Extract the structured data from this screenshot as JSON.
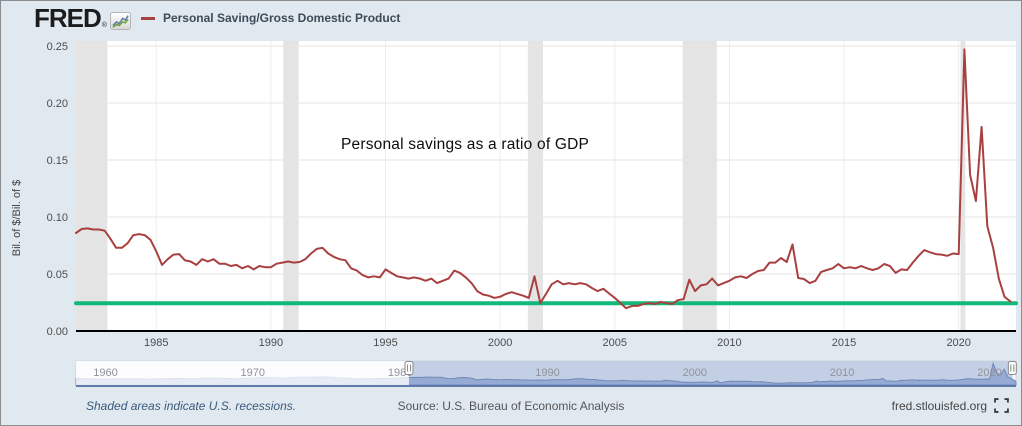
{
  "header": {
    "logo_text": "FRED",
    "logo_registered_mark": "®",
    "logo_icon": "line-chart-icon",
    "legend": {
      "marker_color": "#a94040",
      "label": "Personal Saving/Gross Domestic Product"
    }
  },
  "chart_data": {
    "type": "line",
    "annotation": "Personal savings as a ratio of GDP",
    "ylabel": "Bil. of $/Bil. of $",
    "ylim": [
      0,
      0.25
    ],
    "xlim": [
      1981.5,
      2022.5
    ],
    "y_ticks": [
      0.0,
      0.05,
      0.1,
      0.15,
      0.2,
      0.25
    ],
    "x_ticks": [
      1985,
      1990,
      1995,
      2000,
      2005,
      2010,
      2015,
      2020
    ],
    "grid": "horizontal-light",
    "recession_bands": [
      [
        1981.5,
        1982.87
      ],
      [
        1990.54,
        1991.21
      ],
      [
        2001.21,
        2001.87
      ],
      [
        2007.96,
        2009.45
      ],
      [
        2020.08,
        2020.29
      ]
    ],
    "series": [
      {
        "name": "Personal Saving/Gross Domestic Product",
        "color": "#a94040",
        "width": 2,
        "points": [
          [
            1981.5,
            0.086
          ],
          [
            1981.75,
            0.0895
          ],
          [
            1982,
            0.09
          ],
          [
            1982.25,
            0.089
          ],
          [
            1982.5,
            0.089
          ],
          [
            1982.75,
            0.088
          ],
          [
            1983,
            0.081
          ],
          [
            1983.25,
            0.073
          ],
          [
            1983.5,
            0.073
          ],
          [
            1983.75,
            0.077
          ],
          [
            1984,
            0.084
          ],
          [
            1984.25,
            0.085
          ],
          [
            1984.5,
            0.084
          ],
          [
            1984.75,
            0.08
          ],
          [
            1985,
            0.07
          ],
          [
            1985.25,
            0.058
          ],
          [
            1985.5,
            0.063
          ],
          [
            1985.75,
            0.067
          ],
          [
            1986,
            0.0675
          ],
          [
            1986.25,
            0.062
          ],
          [
            1986.5,
            0.061
          ],
          [
            1986.75,
            0.058
          ],
          [
            1987,
            0.063
          ],
          [
            1987.25,
            0.061
          ],
          [
            1987.5,
            0.063
          ],
          [
            1987.75,
            0.059
          ],
          [
            1988,
            0.059
          ],
          [
            1988.25,
            0.057
          ],
          [
            1988.5,
            0.058
          ],
          [
            1988.75,
            0.055
          ],
          [
            1989,
            0.057
          ],
          [
            1989.25,
            0.054
          ],
          [
            1989.5,
            0.057
          ],
          [
            1989.75,
            0.056
          ],
          [
            1990,
            0.056
          ],
          [
            1990.25,
            0.059
          ],
          [
            1990.5,
            0.06
          ],
          [
            1990.75,
            0.061
          ],
          [
            1991,
            0.06
          ],
          [
            1991.25,
            0.0605
          ],
          [
            1991.5,
            0.063
          ],
          [
            1991.75,
            0.068
          ],
          [
            1992,
            0.072
          ],
          [
            1992.25,
            0.073
          ],
          [
            1992.5,
            0.068
          ],
          [
            1992.75,
            0.065
          ],
          [
            1993,
            0.063
          ],
          [
            1993.25,
            0.062
          ],
          [
            1993.5,
            0.055
          ],
          [
            1993.75,
            0.053
          ],
          [
            1994,
            0.049
          ],
          [
            1994.25,
            0.047
          ],
          [
            1994.5,
            0.048
          ],
          [
            1994.75,
            0.047
          ],
          [
            1995,
            0.054
          ],
          [
            1995.25,
            0.051
          ],
          [
            1995.5,
            0.048
          ],
          [
            1995.75,
            0.047
          ],
          [
            1996,
            0.046
          ],
          [
            1996.25,
            0.047
          ],
          [
            1996.5,
            0.046
          ],
          [
            1996.75,
            0.044
          ],
          [
            1997,
            0.046
          ],
          [
            1997.25,
            0.042
          ],
          [
            1997.5,
            0.044
          ],
          [
            1997.75,
            0.046
          ],
          [
            1998,
            0.053
          ],
          [
            1998.25,
            0.051
          ],
          [
            1998.5,
            0.047
          ],
          [
            1998.75,
            0.042
          ],
          [
            1999,
            0.035
          ],
          [
            1999.25,
            0.032
          ],
          [
            1999.5,
            0.031
          ],
          [
            1999.75,
            0.029
          ],
          [
            2000,
            0.03
          ],
          [
            2000.25,
            0.0325
          ],
          [
            2000.5,
            0.034
          ],
          [
            2000.75,
            0.0325
          ],
          [
            2001,
            0.031
          ],
          [
            2001.25,
            0.029
          ],
          [
            2001.5,
            0.048
          ],
          [
            2001.75,
            0.0245
          ],
          [
            2002,
            0.0325
          ],
          [
            2002.25,
            0.041
          ],
          [
            2002.5,
            0.044
          ],
          [
            2002.75,
            0.041
          ],
          [
            2003,
            0.042
          ],
          [
            2003.25,
            0.041
          ],
          [
            2003.5,
            0.042
          ],
          [
            2003.75,
            0.041
          ],
          [
            2004,
            0.0377
          ],
          [
            2004.25,
            0.035
          ],
          [
            2004.5,
            0.037
          ],
          [
            2004.75,
            0.033
          ],
          [
            2005,
            0.029
          ],
          [
            2005.25,
            0.0245
          ],
          [
            2005.5,
            0.02
          ],
          [
            2005.75,
            0.022
          ],
          [
            2006,
            0.022
          ],
          [
            2006.25,
            0.0237
          ],
          [
            2006.5,
            0.0246
          ],
          [
            2006.75,
            0.0237
          ],
          [
            2007,
            0.0254
          ],
          [
            2007.25,
            0.0246
          ],
          [
            2007.5,
            0.0237
          ],
          [
            2007.75,
            0.027
          ],
          [
            2008,
            0.028
          ],
          [
            2008.25,
            0.045
          ],
          [
            2008.5,
            0.035
          ],
          [
            2008.75,
            0.04
          ],
          [
            2009,
            0.041
          ],
          [
            2009.25,
            0.046
          ],
          [
            2009.5,
            0.04
          ],
          [
            2009.75,
            0.042
          ],
          [
            2010,
            0.044
          ],
          [
            2010.25,
            0.047
          ],
          [
            2010.5,
            0.048
          ],
          [
            2010.75,
            0.0465
          ],
          [
            2011,
            0.05
          ],
          [
            2011.25,
            0.0526
          ],
          [
            2011.5,
            0.0535
          ],
          [
            2011.75,
            0.06
          ],
          [
            2012,
            0.06
          ],
          [
            2012.25,
            0.064
          ],
          [
            2012.5,
            0.0605
          ],
          [
            2012.75,
            0.076
          ],
          [
            2013,
            0.0465
          ],
          [
            2013.25,
            0.0456
          ],
          [
            2013.5,
            0.042
          ],
          [
            2013.75,
            0.044
          ],
          [
            2014,
            0.0518
          ],
          [
            2014.25,
            0.0535
          ],
          [
            2014.5,
            0.055
          ],
          [
            2014.75,
            0.0588
          ],
          [
            2015,
            0.055
          ],
          [
            2015.25,
            0.056
          ],
          [
            2015.5,
            0.055
          ],
          [
            2015.75,
            0.057
          ],
          [
            2016,
            0.055
          ],
          [
            2016.25,
            0.0535
          ],
          [
            2016.5,
            0.055
          ],
          [
            2016.75,
            0.0588
          ],
          [
            2017,
            0.057
          ],
          [
            2017.25,
            0.051
          ],
          [
            2017.5,
            0.054
          ],
          [
            2017.75,
            0.0535
          ],
          [
            2018,
            0.06
          ],
          [
            2018.25,
            0.066
          ],
          [
            2018.5,
            0.071
          ],
          [
            2018.75,
            0.069
          ],
          [
            2019,
            0.0675
          ],
          [
            2019.25,
            0.067
          ],
          [
            2019.5,
            0.066
          ],
          [
            2019.75,
            0.068
          ],
          [
            2020,
            0.0675
          ],
          [
            2020.25,
            0.247
          ],
          [
            2020.5,
            0.137
          ],
          [
            2020.75,
            0.114
          ],
          [
            2021,
            0.179
          ],
          [
            2021.25,
            0.092
          ],
          [
            2021.5,
            0.073
          ],
          [
            2021.75,
            0.046
          ],
          [
            2022,
            0.03
          ],
          [
            2022.25,
            0.026
          ]
        ]
      },
      {
        "name": "horizontal reference line",
        "color": "#12b87a",
        "width": 4,
        "points": [
          [
            1981.5,
            0.0243
          ],
          [
            2022.5,
            0.0243
          ]
        ]
      }
    ]
  },
  "slider": {
    "decade_labels": [
      "1960",
      "1970",
      "1980",
      "1990",
      "2000",
      "2010",
      "2020"
    ],
    "decade_years": [
      1960,
      1970,
      1980,
      1990,
      2000,
      2010,
      2020
    ],
    "domain": [
      1958,
      2021.8
    ],
    "selected_range": [
      1980.6,
      2021.55
    ],
    "pre_1981_points": [
      [
        1958,
        0.075
      ],
      [
        1959,
        0.07
      ],
      [
        1960,
        0.066
      ],
      [
        1961,
        0.072
      ],
      [
        1962,
        0.071
      ],
      [
        1963,
        0.068
      ],
      [
        1964,
        0.073
      ],
      [
        1965,
        0.074
      ],
      [
        1966,
        0.072
      ],
      [
        1967,
        0.08
      ],
      [
        1968,
        0.075
      ],
      [
        1969,
        0.071
      ],
      [
        1970,
        0.081
      ],
      [
        1971,
        0.085
      ],
      [
        1972,
        0.078
      ],
      [
        1973,
        0.089
      ],
      [
        1974,
        0.089
      ],
      [
        1975,
        0.092
      ],
      [
        1976,
        0.08
      ],
      [
        1977,
        0.072
      ],
      [
        1978,
        0.073
      ],
      [
        1979,
        0.074
      ],
      [
        1980,
        0.081
      ],
      [
        1981,
        0.086
      ]
    ]
  },
  "footer": {
    "recession_note": "Shaded areas indicate U.S. recessions.",
    "source": "Source: U.S. Bureau of Economic Analysis",
    "site": "fred.stlouisfed.org",
    "fullscreen_icon": "fullscreen-icon"
  }
}
